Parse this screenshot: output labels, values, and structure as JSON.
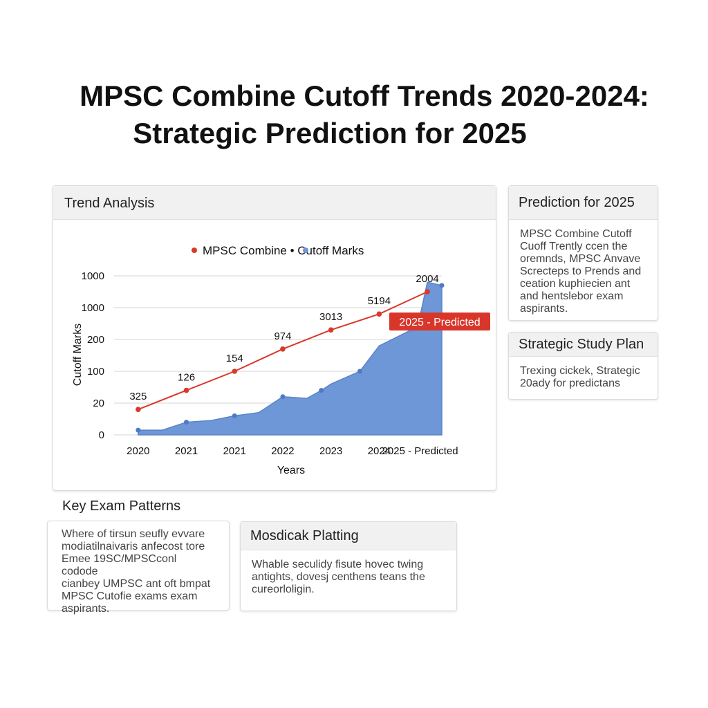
{
  "page": {
    "title_line1": "MPSC Combine Cutoff Trends 2020-2024:",
    "title_line2": "Strategic Prediction for 2025"
  },
  "trend_panel": {
    "heading": "Trend Analysis"
  },
  "prediction_panel": {
    "heading": "Prediction for 2025",
    "lines": [
      "MPSC Combine Cutoff",
      "Cuoff Trently ccen the",
      "oremnds, MPSC Anvave",
      "Screcteps to Prends and",
      "ceation kuphiecien ant",
      "and hentslebor exam",
      "aspirants."
    ]
  },
  "study_plan_panel": {
    "heading": "Strategic Study Plan",
    "lines": [
      "Trexing cickek, Strategic",
      "20ady for predictans"
    ]
  },
  "patterns_section": {
    "heading": "Key Exam Patterns",
    "lines": [
      "Where of tirsun seufly evvare",
      "modiatilnaivaris anfecost tore",
      "Emee 19SC/MPSCconl codode",
      "cianbey UMPSC ant oft bmpat",
      "MPSC Cutofie exams exam",
      "aspirants."
    ]
  },
  "mos_panel": {
    "heading": "Mosdicak Platting",
    "lines": [
      "Whable seculidy fisute hovec twing",
      "antights, dovesj centhens teans the",
      "cureorloligin."
    ]
  },
  "colors": {
    "line_series": "#d9382b",
    "area_series": "#6d97d6",
    "prediction_badge": "#d9362b"
  },
  "chart_data": {
    "type": "line",
    "legend_text": "MPSC Combine • Cutoff Marks",
    "legend_placement": "top",
    "xlabel": "Years",
    "ylabel": "Cutoff Marks",
    "categories": [
      "2020",
      "2021",
      "2021",
      "2022",
      "2023",
      "2024",
      "2025 - Predicted"
    ],
    "y_tick_labels": [
      "0",
      "20",
      "100",
      "200",
      "1000",
      "1000"
    ],
    "grid": true,
    "prediction_label": "2025 - Predicted",
    "series": [
      {
        "kind": "line",
        "color": "#d9382b",
        "x": [
          0,
          1,
          2,
          3,
          4,
          5,
          6
        ],
        "y": [
          0.8,
          1.4,
          2.0,
          2.7,
          3.3,
          3.8,
          4.5
        ],
        "point_labels": [
          "325",
          "126",
          "154",
          "974",
          "3013",
          "5194",
          "2004"
        ]
      },
      {
        "kind": "area",
        "color": "#6d97d6",
        "x": [
          0,
          0.5,
          1,
          1.5,
          2,
          2.5,
          3,
          3.5,
          3.8,
          4,
          4.6,
          5,
          5.8,
          6,
          6.3
        ],
        "y": [
          0.15,
          0.15,
          0.4,
          0.45,
          0.6,
          0.7,
          1.2,
          1.15,
          1.4,
          1.6,
          2.0,
          2.8,
          3.4,
          4.8,
          4.7
        ]
      }
    ]
  }
}
